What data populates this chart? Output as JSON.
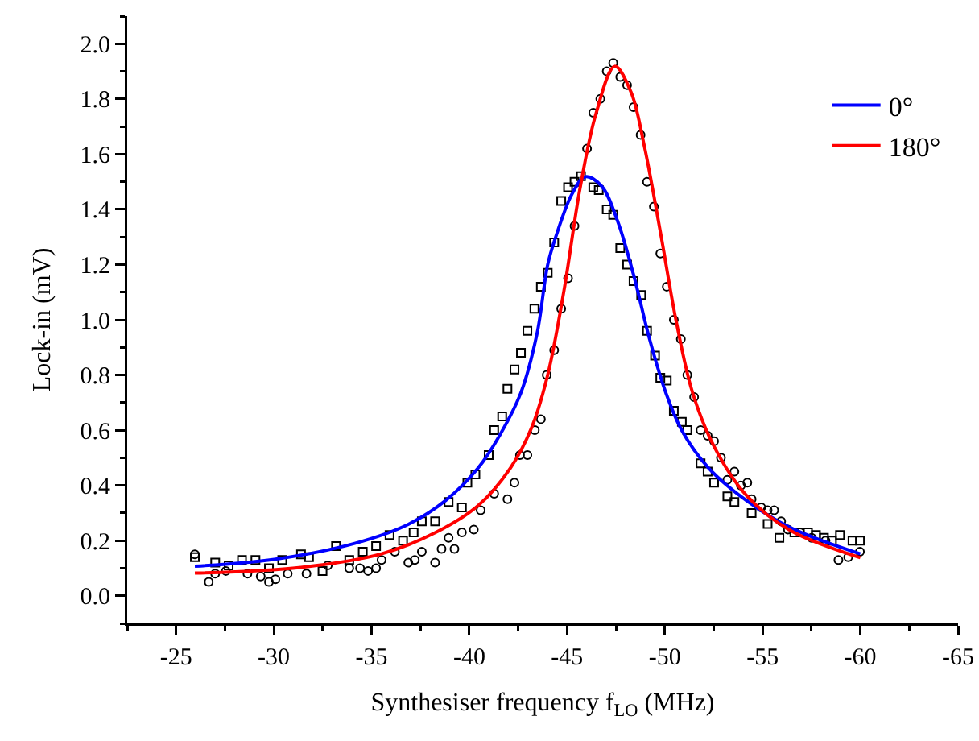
{
  "chart_data": {
    "type": "scatter",
    "xlabel": "Synthesiser frequency f$_{LO}$ (MHz)",
    "ylabel": "Lock-in (mV)",
    "xlim": [
      -22.5,
      -65
    ],
    "xticks": [
      {
        "value": -22.5,
        "label": null
      },
      -25,
      {
        "value": -27.5,
        "label": null
      },
      -30,
      {
        "value": -32.5,
        "label": null
      },
      -35,
      {
        "value": -37.5,
        "label": null
      },
      -40,
      {
        "value": -42.5,
        "label": null
      },
      -45,
      {
        "value": -47.5,
        "label": null
      },
      -50,
      {
        "value": -52.5,
        "label": null
      },
      -55,
      {
        "value": -57.5,
        "label": null
      },
      -60,
      {
        "value": -62.5,
        "label": null
      },
      -65
    ],
    "ylim": [
      -0.1,
      2.1
    ],
    "yticks": [
      {
        "value": -0.1,
        "label": null
      },
      {
        "value": 0,
        "label": "0.0"
      },
      {
        "value": 0.1,
        "label": null
      },
      0.2,
      {
        "value": 0.3,
        "label": null
      },
      0.4,
      {
        "value": 0.5,
        "label": null
      },
      0.6,
      {
        "value": 0.7,
        "label": null
      },
      0.8,
      {
        "value": 0.9,
        "label": null
      },
      {
        "value": 1,
        "label": "1.0"
      },
      {
        "value": 1.1,
        "label": null
      },
      1.2,
      {
        "value": 1.3,
        "label": null
      },
      1.4,
      {
        "value": 1.5,
        "label": null
      },
      1.6,
      {
        "value": 1.7,
        "label": null
      },
      1.8,
      {
        "value": 1.9,
        "label": null
      },
      {
        "value": 2,
        "label": "2.0"
      },
      {
        "value": 2.1,
        "label": null
      }
    ],
    "grid": false,
    "legend": "top right",
    "series": [
      {
        "color": "#000000",
        "marker": "square",
        "x": [
          -25.96,
          -27.0,
          -27.69,
          -28.37,
          -29.06,
          -29.75,
          -30.43,
          -31.39,
          -31.8,
          -32.49,
          -33.18,
          -33.86,
          -34.55,
          -35.23,
          -35.92,
          -36.61,
          -37.15,
          -37.57,
          -38.25,
          -38.94,
          -39.62,
          -39.9,
          -40.31,
          -40.99,
          -41.27,
          -41.68,
          -41.95,
          -42.31,
          -42.64,
          -42.97,
          -43.33,
          -43.66,
          -44.01,
          -44.34,
          -44.7,
          -45.05,
          -45.38,
          -45.71,
          -46.34,
          -46.62,
          -47.03,
          -47.36,
          -47.72,
          -48.07,
          -48.4,
          -48.79,
          -49.09,
          -49.5,
          -49.77,
          -50.1,
          -50.46,
          -50.87,
          -51.15,
          -51.83,
          -52.19,
          -52.52,
          -53.2,
          -53.56,
          -54.44,
          -55.26,
          -55.86,
          -56.63,
          -57.32,
          -57.73,
          -58.14,
          -58.55,
          -58.96,
          -59.6,
          -59.98
        ],
        "values": [
          0.14,
          0.12,
          0.11,
          0.13,
          0.13,
          0.1,
          0.13,
          0.15,
          0.14,
          0.09,
          0.18,
          0.13,
          0.16,
          0.18,
          0.22,
          0.2,
          0.23,
          0.27,
          0.27,
          0.34,
          0.32,
          0.41,
          0.44,
          0.51,
          0.6,
          0.65,
          0.75,
          0.82,
          0.88,
          0.96,
          1.04,
          1.12,
          1.17,
          1.28,
          1.43,
          1.48,
          1.5,
          1.52,
          1.48,
          1.47,
          1.4,
          1.38,
          1.26,
          1.2,
          1.14,
          1.09,
          0.96,
          0.87,
          0.79,
          0.78,
          0.67,
          0.63,
          0.6,
          0.48,
          0.45,
          0.41,
          0.36,
          0.34,
          0.3,
          0.26,
          0.21,
          0.23,
          0.23,
          0.22,
          0.21,
          0.2,
          0.22,
          0.2,
          0.2
        ]
      },
      {
        "color": "#000000",
        "marker": "circle",
        "x": [
          -25.96,
          -26.67,
          -27.0,
          -27.55,
          -28.65,
          -29.33,
          -29.75,
          -30.08,
          -30.71,
          -31.67,
          -32.76,
          -33.86,
          -34.41,
          -34.82,
          -35.23,
          -35.51,
          -36.19,
          -36.88,
          -37.21,
          -37.57,
          -38.25,
          -38.58,
          -38.94,
          -39.24,
          -39.62,
          -40.23,
          -40.58,
          -41.27,
          -41.95,
          -42.31,
          -42.59,
          -42.97,
          -43.35,
          -43.66,
          -43.96,
          -44.34,
          -44.7,
          -45.05,
          -45.38,
          -46.02,
          -46.34,
          -46.7,
          -47.03,
          -47.36,
          -47.72,
          -48.07,
          -48.4,
          -48.76,
          -49.09,
          -49.44,
          -49.77,
          -50.1,
          -50.46,
          -50.82,
          -51.15,
          -51.5,
          -51.83,
          -52.19,
          -52.52,
          -52.87,
          -53.2,
          -53.56,
          -53.89,
          -54.22,
          -54.44,
          -54.93,
          -55.26,
          -55.59,
          -55.95,
          -56.3,
          -56.91,
          -57.51,
          -58.22,
          -58.88,
          -59.38,
          -59.98
        ],
        "values": [
          0.15,
          0.05,
          0.08,
          0.09,
          0.08,
          0.07,
          0.05,
          0.06,
          0.08,
          0.08,
          0.11,
          0.1,
          0.1,
          0.09,
          0.1,
          0.13,
          0.16,
          0.12,
          0.13,
          0.16,
          0.12,
          0.17,
          0.21,
          0.17,
          0.23,
          0.24,
          0.31,
          0.37,
          0.35,
          0.41,
          0.51,
          0.51,
          0.6,
          0.64,
          0.8,
          0.89,
          1.04,
          1.15,
          1.34,
          1.62,
          1.75,
          1.8,
          1.9,
          1.93,
          1.88,
          1.85,
          1.77,
          1.67,
          1.5,
          1.41,
          1.24,
          1.12,
          1.0,
          0.93,
          0.8,
          0.72,
          0.6,
          0.58,
          0.56,
          0.5,
          0.42,
          0.45,
          0.4,
          0.41,
          0.35,
          0.32,
          0.31,
          0.31,
          0.27,
          0.24,
          0.23,
          0.21,
          0.2,
          0.13,
          0.14,
          0.16
        ]
      },
      {
        "type": "line",
        "name": "0°",
        "color": "#0000ff",
        "marker": "none",
        "line_style": "solid",
        "x": [
          -25.96,
          -30.02,
          -34.14,
          -36.88,
          -38.8,
          -40.45,
          -41.54,
          -42.64,
          -43.46,
          -44.01,
          -44.42,
          -45.25,
          -45.93,
          -46.76,
          -47.58,
          -48.4,
          -49.22,
          -50.05,
          -50.87,
          -52.24,
          -54.16,
          -56.36,
          -60.0
        ],
        "values": [
          0.107,
          0.132,
          0.19,
          0.259,
          0.346,
          0.463,
          0.58,
          0.736,
          0.949,
          1.2,
          1.3,
          1.455,
          1.518,
          1.485,
          1.358,
          1.163,
          0.93,
          0.736,
          0.599,
          0.463,
          0.346,
          0.249,
          0.152
        ]
      },
      {
        "type": "line",
        "name": "180°",
        "color": "#ff0000",
        "marker": "none",
        "line_style": "solid",
        "x": [
          -25.96,
          -31.39,
          -35.51,
          -38.26,
          -40.45,
          -42.1,
          -43.19,
          -44.01,
          -44.84,
          -45.66,
          -46.48,
          -47.44,
          -48.27,
          -48.95,
          -49.77,
          -50.6,
          -51.42,
          -52.52,
          -54.16,
          -56.36,
          -60.0
        ],
        "values": [
          0.082,
          0.103,
          0.152,
          0.229,
          0.327,
          0.463,
          0.61,
          0.8,
          1.105,
          1.475,
          1.747,
          1.918,
          1.825,
          1.63,
          1.319,
          0.988,
          0.736,
          0.541,
          0.365,
          0.239,
          0.138
        ]
      }
    ]
  }
}
